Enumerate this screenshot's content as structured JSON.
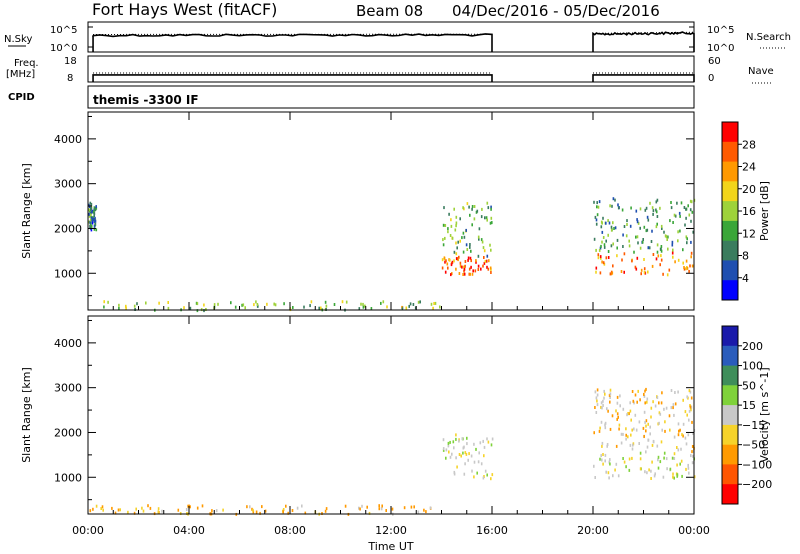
{
  "header": {
    "title": "Fort Hays West (fitACF)",
    "beam": "Beam 08",
    "date_range": "04/Dec/2016 - 05/Dec/2016"
  },
  "sky_panel": {
    "left_label": "N.Sky",
    "left_ticks": [
      "10^5",
      "10^0"
    ],
    "right_label": "N.Search",
    "right_ticks": [
      "10^5",
      "10^0"
    ]
  },
  "freq_panel": {
    "left_label_1": "Freq.",
    "left_label_2": "[MHz]",
    "left_ticks": [
      "18",
      "8"
    ],
    "right_label": "Nave",
    "right_ticks": [
      "60",
      "0"
    ]
  },
  "cpid_panel": {
    "left_label": "CPID",
    "program": "themis -3300 IF"
  },
  "power_panel": {
    "ylabel": "Slant Range [km]",
    "colorbar_label": "Power [dB]"
  },
  "velocity_panel": {
    "ylabel": "Slant Range [km]",
    "colorbar_label": "Velocity [m s^-1]"
  },
  "xaxis": {
    "label": "Time UT",
    "ticks": [
      "00:00",
      "04:00",
      "08:00",
      "12:00",
      "16:00",
      "20:00",
      "00:00"
    ]
  },
  "colors": {
    "power_scale": [
      "#0000ff",
      "#1f4fb0",
      "#3a7c5e",
      "#3aa638",
      "#9ed23a",
      "#f2d51b",
      "#ff9900",
      "#ff5a00",
      "#ff0000"
    ],
    "velocity_scale": [
      "#1a1aaa",
      "#2a5cbc",
      "#3f8e5a",
      "#7fd23a",
      "#c8c8c8",
      "#f6d32a",
      "#ff9a00",
      "#ff5500",
      "#ff0000"
    ]
  },
  "chart_data": [
    {
      "type": "line",
      "name": "sky_noise",
      "x_unit": "hours UT",
      "xlim": [
        0,
        24
      ],
      "y_scale": "log",
      "ylim": [
        1,
        100000
      ],
      "series": [
        {
          "values_x": [
            0.2,
            16.0
          ],
          "values_y": [
            600,
            700
          ]
        },
        {
          "values_x": [
            20.0,
            24.0
          ],
          "values_y": [
            900,
            1500
          ]
        }
      ],
      "data_gap": [
        16.0,
        20.0
      ]
    },
    {
      "type": "line",
      "name": "frequency_nave",
      "x_unit": "hours UT",
      "xlim": [
        0,
        24
      ],
      "left_ylim": [
        8,
        18
      ],
      "right_ylim": [
        0,
        60
      ],
      "series": [
        {
          "values_x": [
            0.2,
            16.0
          ],
          "values_y": [
            10.7,
            10.7
          ]
        },
        {
          "values_x": [
            20.0,
            24.0
          ],
          "values_y": [
            10.7,
            10.7
          ]
        }
      ]
    },
    {
      "type": "heatmap",
      "name": "power",
      "x_unit": "hours UT",
      "xlim": [
        0,
        24
      ],
      "ylim": [
        180,
        4600
      ],
      "yticks": [
        1000,
        2000,
        3000,
        4000
      ],
      "colorbar_ticks": [
        4,
        8,
        12,
        16,
        20,
        24,
        28
      ],
      "colorbar_range": [
        0,
        30
      ],
      "features": [
        {
          "x": [
            0.0,
            14.0
          ],
          "y": [
            200,
            400
          ],
          "value": 14
        },
        {
          "x": [
            14.0,
            16.0
          ],
          "y": [
            1000,
            1400
          ],
          "value": 26
        },
        {
          "x": [
            14.0,
            16.0
          ],
          "y": [
            1400,
            2600
          ],
          "value": 12
        },
        {
          "x": [
            20.0,
            24.0
          ],
          "y": [
            1000,
            1500
          ],
          "value": 24
        },
        {
          "x": [
            20.0,
            24.0
          ],
          "y": [
            1500,
            2700
          ],
          "value": 10
        },
        {
          "x": [
            0.0,
            0.3
          ],
          "y": [
            2000,
            2600
          ],
          "value": 8
        }
      ]
    },
    {
      "type": "heatmap",
      "name": "velocity",
      "x_unit": "hours UT",
      "xlim": [
        0,
        24
      ],
      "ylim": [
        180,
        4600
      ],
      "yticks": [
        1000,
        2000,
        3000,
        4000
      ],
      "colorbar_ticks": [
        200,
        100,
        50,
        15,
        -15,
        -50,
        -100,
        -200
      ],
      "features": [
        {
          "x": [
            0.0,
            14.0
          ],
          "y": [
            200,
            400
          ],
          "value": -40
        },
        {
          "x": [
            14.0,
            16.0
          ],
          "y": [
            1000,
            2000
          ],
          "value": 0
        },
        {
          "x": [
            20.0,
            24.0
          ],
          "y": [
            1000,
            1600
          ],
          "value": 0
        },
        {
          "x": [
            20.0,
            24.0
          ],
          "y": [
            1600,
            3000
          ],
          "value": -20
        }
      ]
    }
  ]
}
